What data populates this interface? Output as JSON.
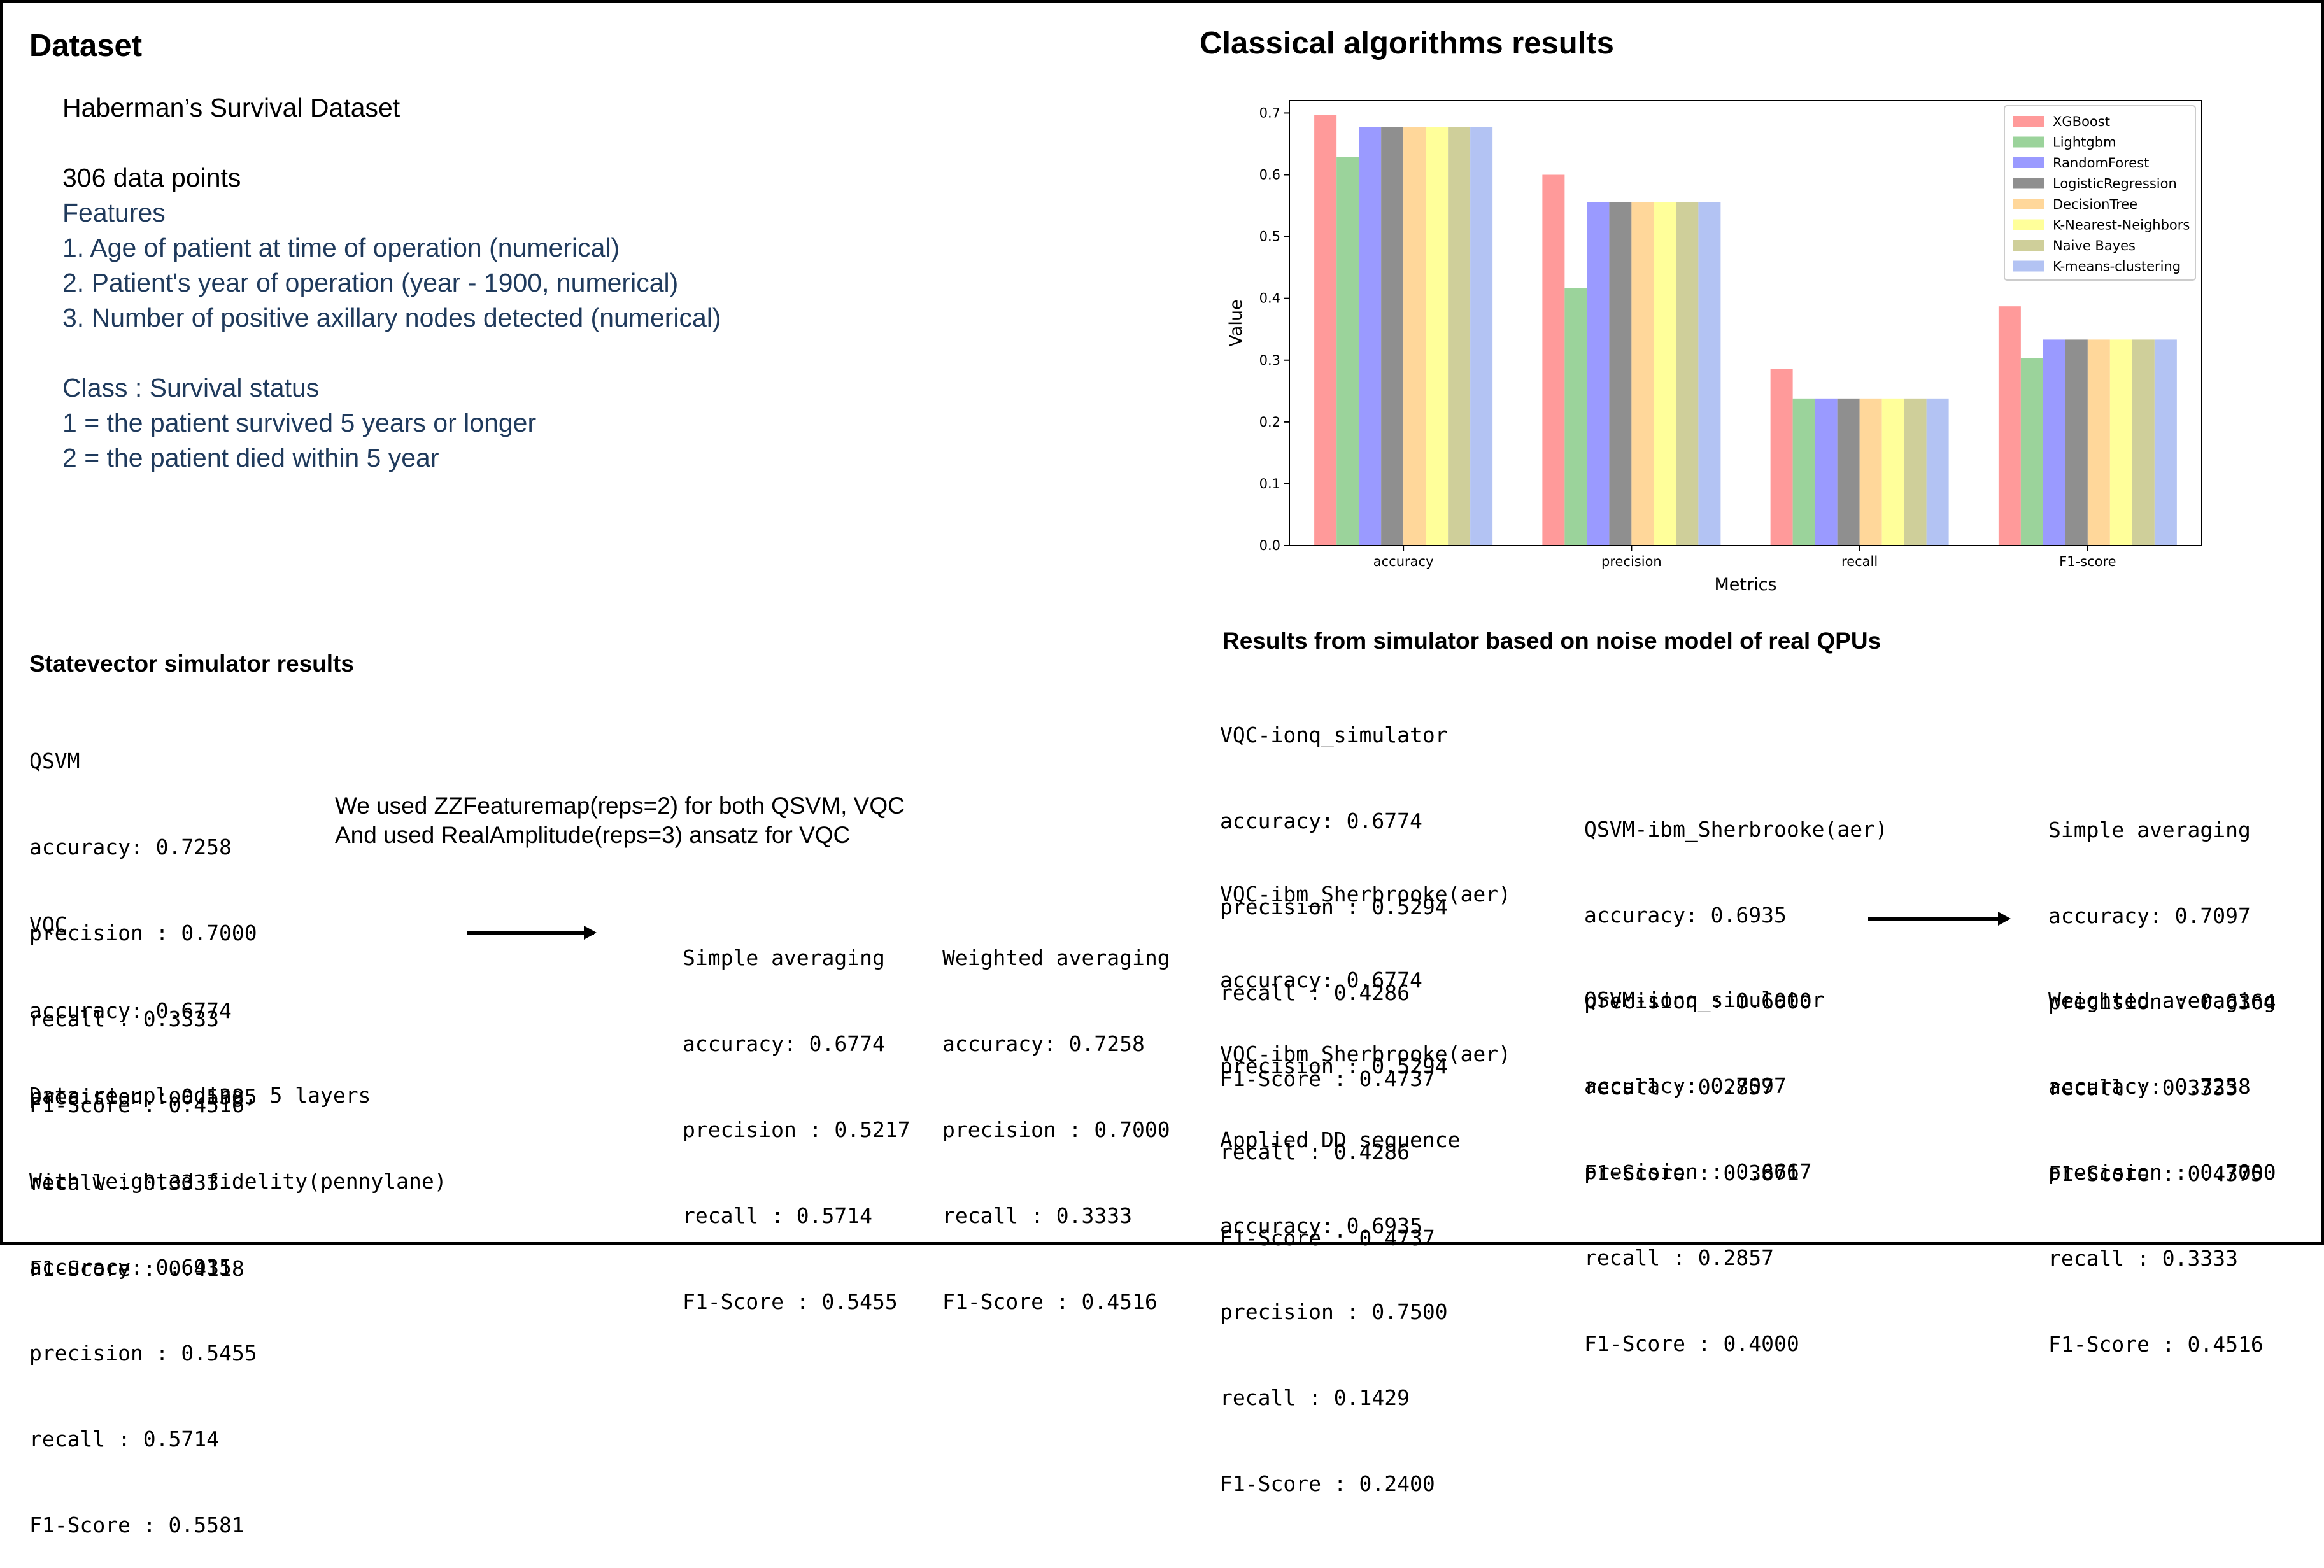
{
  "dataset": {
    "heading": "Dataset",
    "name": "Haberman’s Survival Dataset",
    "points": "306 data points",
    "features_label": "Features",
    "features": [
      "1. Age of patient at time of operation (numerical)",
      "2. Patient's year of operation (year - 1900, numerical)",
      "3. Number of positive axillary nodes detected (numerical)"
    ],
    "class_label": "Class : Survival status",
    "classes": [
      "1 = the patient survived 5 years or longer",
      "2 = the patient died within 5 year"
    ]
  },
  "classical": {
    "heading": "Classical algorithms results"
  },
  "chart_data": {
    "type": "bar",
    "title": "",
    "xlabel": "Metrics",
    "ylabel": "Value",
    "ylim": [
      0,
      0.72
    ],
    "yticks": [
      "0.0",
      "0.1",
      "0.2",
      "0.3",
      "0.4",
      "0.5",
      "0.6",
      "0.7"
    ],
    "categories": [
      "accuracy",
      "precision",
      "recall",
      "F1-score"
    ],
    "legend_position": "top-right",
    "grid": false,
    "series": [
      {
        "name": "XGBoost",
        "color": "#ff9a9a",
        "values": [
          0.6968,
          0.6,
          0.2857,
          0.3871
        ]
      },
      {
        "name": "Lightgbm",
        "color": "#9bd39b",
        "values": [
          0.629,
          0.4167,
          0.2381,
          0.303
        ]
      },
      {
        "name": "RandomForest",
        "color": "#9a9aff",
        "values": [
          0.6774,
          0.5556,
          0.2381,
          0.3333
        ]
      },
      {
        "name": "LogisticRegression",
        "color": "#8f8f8f",
        "values": [
          0.6774,
          0.5556,
          0.2381,
          0.3333
        ]
      },
      {
        "name": "DecisionTree",
        "color": "#ffd79a",
        "values": [
          0.6774,
          0.5556,
          0.2381,
          0.3333
        ]
      },
      {
        "name": "K-Nearest-Neighbors",
        "color": "#ffff9a",
        "values": [
          0.6774,
          0.5556,
          0.2381,
          0.3333
        ]
      },
      {
        "name": "Naive Bayes",
        "color": "#cfcf9a",
        "values": [
          0.6774,
          0.5556,
          0.2381,
          0.3333
        ]
      },
      {
        "name": "K-means-clustering",
        "color": "#b3c3f3",
        "values": [
          0.6774,
          0.5556,
          0.2381,
          0.3333
        ]
      }
    ]
  },
  "statevector": {
    "heading": "Statevector simulator results",
    "qsvm": [
      "QSVM",
      "accuracy: 0.7258",
      "precision : 0.7000",
      "recall : 0.3333",
      "F1-Score : 0.4516"
    ],
    "vqc": [
      "VQC",
      "accuracy: 0.6774",
      "precision : 0.5385",
      "recall : 0.3333",
      "F1-Score : 0.4118"
    ],
    "reupload": [
      "Data re-uploading, 5 layers",
      "With weighted fidelity(pennylane)",
      "accuracy: 0.6935",
      "precision : 0.5455",
      "recall : 0.5714",
      "F1-Score : 0.5581"
    ],
    "note": [
      "We used ZZFeaturemap(reps=2) for both QSVM, VQC",
      "And used RealAmplitude(reps=3) ansatz for VQC"
    ],
    "simple": [
      "Simple averaging",
      "accuracy: 0.6774",
      "precision : 0.5217",
      "recall : 0.5714",
      "F1-Score : 0.5455"
    ],
    "weighted": [
      "Weighted averaging",
      "accuracy: 0.7258",
      "precision : 0.7000",
      "recall : 0.3333",
      "F1-Score : 0.4516"
    ]
  },
  "noise": {
    "heading": "Results from simulator based on noise model of real QPUs",
    "vqc_ionq": [
      "VQC-ionq_simulator",
      "accuracy: 0.6774",
      "precision : 0.5294",
      "recall : 0.4286",
      "F1-Score : 0.4737"
    ],
    "vqc_ibm": [
      "VQC-ibm_Sherbrooke(aer)",
      "accuracy: 0.6774",
      "precision : 0.5294",
      "recall : 0.4286",
      "F1-Score : 0.4737"
    ],
    "vqc_ibm_dd": [
      "VQC-ibm_Sherbrooke(aer)",
      "Applied DD sequence",
      "accuracy: 0.6935",
      "precision : 0.7500",
      "recall : 0.1429",
      "F1-Score : 0.2400"
    ],
    "qsvm_ibm": [
      "QSVM-ibm_Sherbrooke(aer)",
      "accuracy: 0.6935",
      "precision : 0.6000",
      "recall : 0.2857",
      "F1-Score : 0.3871"
    ],
    "qsvm_ionq": [
      "QSVM-ionq_simulator",
      "accuracy: 0.7097",
      "precision : 0.6667",
      "recall : 0.2857",
      "F1-Score : 0.4000"
    ],
    "simple": [
      "Simple averaging",
      "accuracy: 0.7097",
      "precision : 0.6364",
      "recall : 0.3333",
      "F1-Score : 0.4375"
    ],
    "weighted": [
      "Weighted averaging",
      "accuracy: 0.7258",
      "precision : 0.7000",
      "recall : 0.3333",
      "F1-Score : 0.4516"
    ]
  }
}
